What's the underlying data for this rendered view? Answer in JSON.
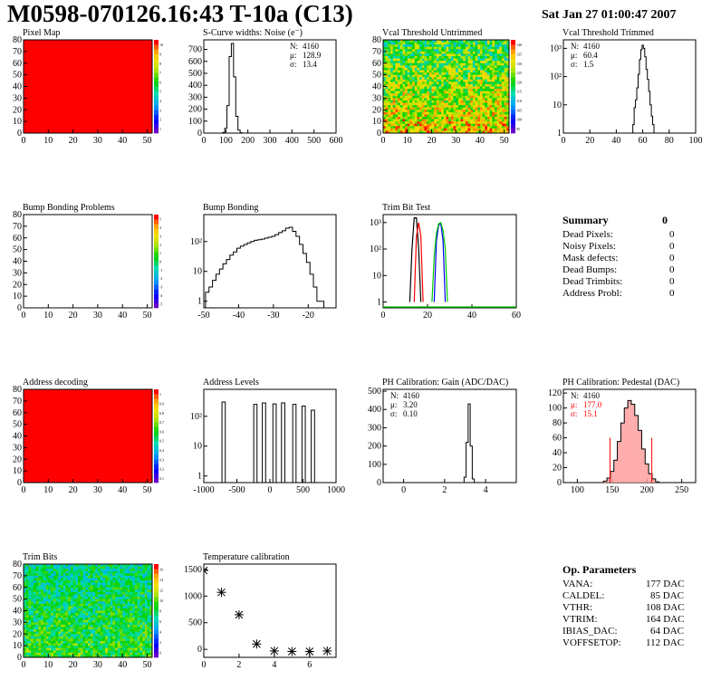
{
  "header": {
    "title": "M0598-070126.16:43 T-10a (C13)",
    "date": "Sat Jan 27 01:00:47 2007"
  },
  "summary": {
    "title": "Summary",
    "total": "0",
    "rows": [
      {
        "label": "Dead Pixels:",
        "value": "0"
      },
      {
        "label": "Noisy Pixels:",
        "value": "0"
      },
      {
        "label": "Mask defects:",
        "value": "0"
      },
      {
        "label": "Dead Bumps:",
        "value": "0"
      },
      {
        "label": "Dead Trimbits:",
        "value": "0"
      },
      {
        "label": "Address Probl:",
        "value": "0"
      }
    ]
  },
  "op_params": {
    "title": "Op. Parameters",
    "rows": [
      {
        "label": "VANA:",
        "value": "177 DAC"
      },
      {
        "label": "CALDEL:",
        "value": "85 DAC"
      },
      {
        "label": "VTHR:",
        "value": "108 DAC"
      },
      {
        "label": "VTRIM:",
        "value": "164 DAC"
      },
      {
        "label": "IBIAS_DAC:",
        "value": "64 DAC"
      },
      {
        "label": "VOFFSETOP:",
        "value": "112 DAC"
      }
    ]
  },
  "chart_data": [
    {
      "id": "pixel-map",
      "type": "heatmap",
      "title": "Pixel Map",
      "xlim": [
        0,
        52
      ],
      "ylim": [
        0,
        80
      ],
      "xticks": [
        "0",
        "10",
        "20",
        "30",
        "40",
        "50"
      ],
      "yticks": [
        "0",
        "10",
        "20",
        "30",
        "40",
        "50",
        "60",
        "70",
        "80"
      ],
      "fill": "uniform",
      "fill_color": "#ff0000",
      "zticks": [
        "1",
        "2",
        "3",
        "4",
        "5",
        "6",
        "7",
        "8",
        "9",
        "10"
      ],
      "palette": "rainbow"
    },
    {
      "id": "scurve",
      "type": "histogram",
      "title": "S-Curve widths: Noise (e⁻)",
      "xlim": [
        0,
        600
      ],
      "ylim": [
        0,
        780
      ],
      "xticks": [
        "0",
        "100",
        "200",
        "300",
        "400",
        "500",
        "600"
      ],
      "yticks": [
        "0",
        "100",
        "200",
        "300",
        "400",
        "500",
        "600",
        "700"
      ],
      "x": [
        80,
        90,
        100,
        110,
        120,
        130,
        140,
        150,
        160,
        170,
        180
      ],
      "values": [
        0,
        5,
        40,
        230,
        640,
        750,
        470,
        140,
        25,
        3,
        0
      ],
      "stats": [
        {
          "label": "N:",
          "value": "4160"
        },
        {
          "label": "μ:",
          "value": "128.9"
        },
        {
          "label": "σ:",
          "value": "13.4"
        }
      ]
    },
    {
      "id": "vcal-untrimmed",
      "type": "heatmap",
      "title": "Vcal Threshold Untrimmed",
      "xlim": [
        0,
        52
      ],
      "ylim": [
        0,
        80
      ],
      "xticks": [
        "0",
        "10",
        "20",
        "30",
        "40",
        "50"
      ],
      "yticks": [
        "0",
        "10",
        "20",
        "30",
        "40",
        "50",
        "60",
        "70",
        "80"
      ],
      "fill": "noise",
      "palette": "rainbow",
      "zticks": [
        "95",
        "100",
        "105",
        "110",
        "115",
        "120",
        "125",
        "130",
        "135",
        "140"
      ]
    },
    {
      "id": "vcal-trimmed",
      "type": "histogram",
      "title": "Vcal Threshold Trimmed",
      "xlim": [
        0,
        100
      ],
      "ylim": [
        1,
        2000
      ],
      "log": true,
      "xticks": [
        "0",
        "20",
        "40",
        "60",
        "80",
        "100"
      ],
      "yticks": [
        "1",
        "10",
        "10²",
        "10³"
      ],
      "x": [
        53,
        54,
        55,
        56,
        57,
        58,
        59,
        60,
        61,
        62,
        63,
        64,
        65,
        66,
        67,
        68,
        69,
        70
      ],
      "values": [
        2,
        8,
        15,
        40,
        120,
        400,
        900,
        1300,
        1000,
        500,
        180,
        80,
        30,
        10,
        4,
        2,
        1,
        0
      ],
      "stats": [
        {
          "label": "N:",
          "value": "4160"
        },
        {
          "label": "μ:",
          "value": "60.4"
        },
        {
          "label": "σ:",
          "value": "1.5"
        }
      ]
    },
    {
      "id": "bump-problems",
      "type": "heatmap",
      "title": "Bump Bonding Problems",
      "xlim": [
        0,
        52
      ],
      "ylim": [
        0,
        80
      ],
      "xticks": [
        "0",
        "10",
        "20",
        "30",
        "40",
        "50"
      ],
      "yticks": [
        "0",
        "10",
        "20",
        "30",
        "40",
        "50",
        "60",
        "70",
        "80"
      ],
      "fill": "empty",
      "palette": "rainbow",
      "zticks": [
        "-5",
        "-4",
        "-3",
        "-2",
        "-1",
        "0",
        "1",
        "2",
        "3",
        "4",
        "5"
      ]
    },
    {
      "id": "bump-bonding",
      "type": "histogram",
      "title": "Bump Bonding",
      "xlim": [
        -50,
        -12
      ],
      "ylim": [
        0.6,
        800
      ],
      "log": true,
      "xticks": [
        "-50",
        "-40",
        "-30",
        "-20"
      ],
      "yticks": [
        "1",
        "10",
        "10²"
      ],
      "x": [
        -49,
        -48,
        -47,
        -46,
        -45,
        -44,
        -43,
        -42,
        -41,
        -40,
        -39,
        -38,
        -37,
        -36,
        -35,
        -34,
        -33,
        -32,
        -31,
        -30,
        -29,
        -28,
        -27,
        -26,
        -25,
        -24,
        -23,
        -22,
        -21,
        -20,
        -19,
        -18,
        -17,
        -16,
        -15
      ],
      "values": [
        2,
        3,
        5,
        8,
        12,
        18,
        25,
        35,
        45,
        60,
        70,
        80,
        90,
        100,
        110,
        115,
        120,
        130,
        140,
        150,
        170,
        200,
        230,
        280,
        300,
        220,
        150,
        80,
        40,
        20,
        8,
        3,
        1,
        1,
        0
      ]
    },
    {
      "id": "trimbit-test",
      "type": "line",
      "title": "Trim Bit Test",
      "xlim": [
        0,
        60
      ],
      "ylim": [
        0.6,
        2000
      ],
      "log": true,
      "xticks": [
        "0",
        "20",
        "40",
        "60"
      ],
      "yticks": [
        "1",
        "10",
        "10²",
        "10³"
      ],
      "series": [
        {
          "color": "#000000",
          "x": [
            12,
            13,
            14,
            15,
            16,
            17
          ],
          "values": [
            1,
            100,
            1500,
            1500,
            100,
            1
          ]
        },
        {
          "color": "#ff0000",
          "x": [
            14,
            15,
            16,
            17,
            18
          ],
          "values": [
            1,
            300,
            1000,
            300,
            1
          ]
        },
        {
          "color": "#0000ff",
          "x": [
            23,
            24,
            25,
            26,
            27,
            28
          ],
          "values": [
            1,
            200,
            800,
            900,
            200,
            1
          ]
        },
        {
          "color": "#00cc00",
          "x": [
            22,
            23,
            24,
            25,
            26,
            27,
            28,
            29
          ],
          "values": [
            1,
            50,
            400,
            900,
            1000,
            500,
            100,
            1
          ]
        }
      ]
    },
    {
      "id": "address-decoding",
      "type": "heatmap",
      "title": "Address decoding",
      "xlim": [
        0,
        52
      ],
      "ylim": [
        0,
        80
      ],
      "xticks": [
        "0",
        "10",
        "20",
        "30",
        "40",
        "50"
      ],
      "yticks": [
        "0",
        "10",
        "20",
        "30",
        "40",
        "50",
        "60",
        "70",
        "80"
      ],
      "fill": "uniform",
      "fill_color": "#ff0000",
      "palette": "rainbow",
      "zticks": [
        "0.1",
        "0.2",
        "0.3",
        "0.4",
        "0.5",
        "0.6",
        "0.7",
        "0.8",
        "0.9",
        "1"
      ]
    },
    {
      "id": "address-levels",
      "type": "histogram",
      "title": "Address Levels",
      "xlim": [
        -1000,
        1000
      ],
      "ylim": [
        0.6,
        800
      ],
      "log": true,
      "xticks": [
        "-1000",
        "-500",
        "0",
        "500",
        "1000"
      ],
      "yticks": [
        "1",
        "10",
        "10²"
      ],
      "peaks": [
        {
          "x": -700,
          "h": 300
        },
        {
          "x": -220,
          "h": 250
        },
        {
          "x": -90,
          "h": 280
        },
        {
          "x": 70,
          "h": 260
        },
        {
          "x": 200,
          "h": 280
        },
        {
          "x": 370,
          "h": 250
        },
        {
          "x": 510,
          "h": 220
        },
        {
          "x": 650,
          "h": 160
        }
      ]
    },
    {
      "id": "ph-gain",
      "type": "histogram",
      "title": "PH Calibration: Gain (ADC/DAC)",
      "xlim": [
        -1,
        5.5
      ],
      "ylim": [
        0,
        510
      ],
      "xticks": [
        "0",
        "2",
        "4"
      ],
      "yticks": [
        "0",
        "100",
        "200",
        "300",
        "400",
        "500"
      ],
      "x": [
        2.9,
        3.0,
        3.1,
        3.2,
        3.3,
        3.4,
        3.5
      ],
      "values": [
        0,
        30,
        220,
        430,
        200,
        20,
        0
      ],
      "stats": [
        {
          "label": "N:",
          "value": "4160"
        },
        {
          "label": "μ:",
          "value": "3.20"
        },
        {
          "label": "σ:",
          "value": "0.10"
        }
      ]
    },
    {
      "id": "ph-pedestal",
      "type": "histogram",
      "title": "PH Calibration: Pedestal (DAC)",
      "xlim": [
        80,
        270
      ],
      "ylim": [
        0,
        125
      ],
      "xticks": [
        "100",
        "150",
        "200",
        "250"
      ],
      "yticks": [
        "0",
        "20",
        "40",
        "60",
        "80",
        "100",
        "120"
      ],
      "x": [
        140,
        145,
        150,
        155,
        160,
        165,
        170,
        175,
        180,
        185,
        190,
        195,
        200,
        205,
        210,
        215
      ],
      "values": [
        2,
        6,
        15,
        30,
        55,
        80,
        100,
        110,
        105,
        90,
        70,
        45,
        25,
        12,
        5,
        1
      ],
      "markers": [
        147,
        207
      ],
      "stats": [
        {
          "label": "N:",
          "value": "4160",
          "color": "#000"
        },
        {
          "label": "μ:",
          "value": "177.0",
          "color": "#ff0000"
        },
        {
          "label": "σ:",
          "value": "15.1",
          "color": "#ff0000"
        }
      ]
    },
    {
      "id": "trim-bits",
      "type": "heatmap",
      "title": "Trim Bits",
      "xlim": [
        0,
        52
      ],
      "ylim": [
        0,
        80
      ],
      "xticks": [
        "0",
        "10",
        "20",
        "30",
        "40",
        "50"
      ],
      "yticks": [
        "0",
        "10",
        "20",
        "30",
        "40",
        "50",
        "60",
        "70",
        "80"
      ],
      "fill": "noise-green",
      "palette": "rainbow",
      "zticks": [
        "0",
        "2",
        "4",
        "6",
        "8",
        "10",
        "12",
        "14",
        "16"
      ]
    },
    {
      "id": "temperature",
      "type": "scatter",
      "title": "Temperature calibration",
      "xlim": [
        0,
        7.5
      ],
      "ylim": [
        -150,
        1600
      ],
      "xticks": [
        "0",
        "2",
        "4",
        "6"
      ],
      "yticks": [
        "0",
        "500",
        "1000",
        "1500"
      ],
      "x": [
        0,
        1,
        2,
        3,
        4,
        5,
        6,
        7
      ],
      "values": [
        1480,
        1070,
        650,
        100,
        -30,
        -40,
        -40,
        -30
      ]
    }
  ]
}
